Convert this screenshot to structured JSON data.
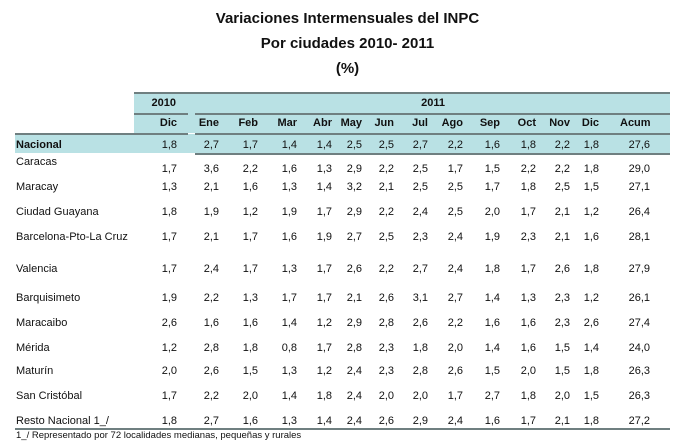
{
  "title": [
    "Variaciones Intermensuales del INPC",
    "Por ciudades 2010- 2011",
    "(%)"
  ],
  "header": {
    "year1": "2010",
    "year2": "2011",
    "months": [
      "Dic",
      "Ene",
      "Feb",
      "Mar",
      "Abr",
      "May",
      "Jun",
      "Jul",
      "Ago",
      "Sep",
      "Oct",
      "Nov",
      "Dic",
      "Acum"
    ]
  },
  "colors": {
    "header_bg": "#b9e1e4"
  },
  "rows": [
    {
      "name": "Nacional",
      "values": [
        "1,8",
        "2,7",
        "1,7",
        "1,4",
        "1,4",
        "2,5",
        "2,5",
        "2,7",
        "2,2",
        "1,6",
        "1,8",
        "2,2",
        "1,8",
        "27,6"
      ]
    },
    {
      "name": "Caracas",
      "values": [
        "1,7",
        "3,6",
        "2,2",
        "1,6",
        "1,3",
        "2,9",
        "2,2",
        "2,5",
        "1,7",
        "1,5",
        "2,2",
        "2,2",
        "1,8",
        "29,0"
      ]
    },
    {
      "name": "Maracay",
      "values": [
        "1,3",
        "2,1",
        "1,6",
        "1,3",
        "1,4",
        "3,2",
        "2,1",
        "2,5",
        "2,5",
        "1,7",
        "1,8",
        "2,5",
        "1,5",
        "27,1"
      ]
    },
    {
      "name": "Ciudad Guayana",
      "values": [
        "1,8",
        "1,9",
        "1,2",
        "1,9",
        "1,7",
        "2,9",
        "2,2",
        "2,4",
        "2,5",
        "2,0",
        "1,7",
        "2,1",
        "1,2",
        "26,4"
      ]
    },
    {
      "name": "Barcelona-Pto-La Cruz",
      "values": [
        "1,7",
        "2,1",
        "1,7",
        "1,6",
        "1,9",
        "2,7",
        "2,5",
        "2,3",
        "2,4",
        "1,9",
        "2,3",
        "2,1",
        "1,6",
        "28,1"
      ]
    },
    {
      "name": "Valencia",
      "values": [
        "1,7",
        "2,4",
        "1,7",
        "1,3",
        "1,7",
        "2,6",
        "2,2",
        "2,7",
        "2,4",
        "1,8",
        "1,7",
        "2,6",
        "1,8",
        "27,9"
      ]
    },
    {
      "name": "Barquisimeto",
      "values": [
        "1,9",
        "2,2",
        "1,3",
        "1,7",
        "1,7",
        "2,1",
        "2,6",
        "3,1",
        "2,7",
        "1,4",
        "1,3",
        "2,3",
        "1,2",
        "26,1"
      ]
    },
    {
      "name": "Maracaibo",
      "values": [
        "2,6",
        "1,6",
        "1,6",
        "1,4",
        "1,2",
        "2,9",
        "2,8",
        "2,6",
        "2,2",
        "1,6",
        "1,6",
        "2,3",
        "2,6",
        "27,4"
      ]
    },
    {
      "name": "Mérida",
      "values": [
        "1,2",
        "2,8",
        "1,8",
        "0,8",
        "1,7",
        "2,8",
        "2,3",
        "1,8",
        "2,0",
        "1,4",
        "1,6",
        "1,5",
        "1,4",
        "24,0"
      ]
    },
    {
      "name": "Maturín",
      "values": [
        "2,0",
        "2,6",
        "1,5",
        "1,3",
        "1,2",
        "2,4",
        "2,3",
        "2,8",
        "2,6",
        "1,5",
        "2,0",
        "1,5",
        "1,8",
        "26,3"
      ]
    },
    {
      "name": "San Cristóbal",
      "values": [
        "1,7",
        "2,2",
        "2,0",
        "1,4",
        "1,8",
        "2,4",
        "2,0",
        "2,0",
        "1,7",
        "2,7",
        "1,8",
        "2,0",
        "1,5",
        "26,3"
      ]
    },
    {
      "name": "Resto Nacional 1_/",
      "values": [
        "1,8",
        "2,7",
        "1,6",
        "1,3",
        "1,4",
        "2,4",
        "2,6",
        "2,9",
        "2,4",
        "1,6",
        "1,7",
        "2,1",
        "1,8",
        "27,2"
      ]
    }
  ],
  "footnote": "1_/ Representado por 72 localidades medianas, pequeñas y rurales"
}
